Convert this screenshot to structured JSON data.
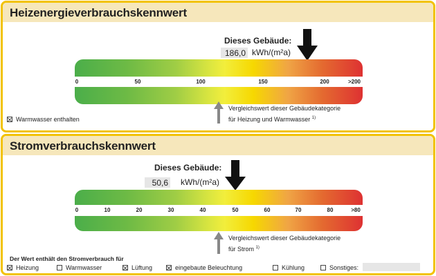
{
  "heat": {
    "title": "Heizenergieverbrauchskennwert",
    "building_label": "Dieses Gebäude:",
    "value": "186,0",
    "unit": "kWh/(m²a)",
    "scale_ticks": [
      "0",
      "50",
      "100",
      "150",
      "200",
      ">200"
    ],
    "building_value": 186.0,
    "comparison_value": 115,
    "comparison_line1": "Vergleichswert dieser Gebäudekategorie",
    "comparison_line2": "für Heizung und Warmwasser",
    "footnote": "1)",
    "warmwasser": {
      "label": "Warmwasser enthalten",
      "checked": true
    }
  },
  "power": {
    "title": "Stromverbrauchskennwert",
    "building_label": "Dieses Gebäude:",
    "value": "50,6",
    "unit": "kWh/(m²a)",
    "scale_ticks": [
      "0",
      "10",
      "20",
      "30",
      "40",
      "50",
      "60",
      "70",
      "80",
      ">80"
    ],
    "building_value": 50.6,
    "comparison_value": 45,
    "comparison_line1": "Vergleichswert dieser Gebäudekategorie",
    "comparison_line2": "für Strom",
    "footnote": "1)",
    "includes_label": "Der Wert enthält den Stromverbrauch für",
    "options": [
      {
        "label": "Heizung",
        "checked": true
      },
      {
        "label": "Warmwasser",
        "checked": false
      },
      {
        "label": "Lüftung",
        "checked": true
      },
      {
        "label": "eingebaute Beleuchtung",
        "checked": true
      },
      {
        "label": "Kühlung",
        "checked": false
      },
      {
        "label": "Sonstiges:",
        "checked": false
      }
    ],
    "sonstiges_value": ""
  },
  "colors": {
    "border": "#f2c200",
    "header": "#f6e7bb",
    "low": "#4bae4a",
    "mid": "#f2ee3c",
    "high": "#de3232"
  }
}
